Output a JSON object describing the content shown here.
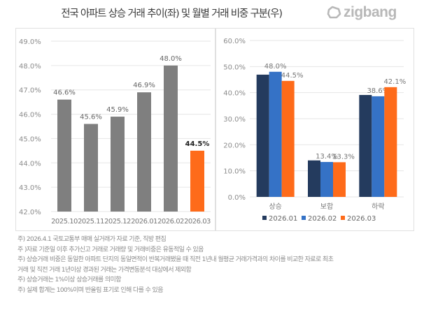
{
  "header": {
    "title": "전국 아파트 상승 거래 추이(좌) 및 월별 거래 비중 구분(우)",
    "logo_text": "zigbang"
  },
  "colors": {
    "gray_bar": "#7f7f7f",
    "highlight_orange": "#fe6b1a",
    "navy": "#243b5e",
    "blue": "#3572c6",
    "orange": "#fe6b1a",
    "grid": "#e6e6e6",
    "tick_text": "#8c8c8c"
  },
  "chart_data": [
    {
      "type": "bar",
      "title": "",
      "xlabel": "",
      "ylabel": "",
      "categories": [
        "2025.10",
        "2025.11",
        "2025.12",
        "2026.01",
        "2026.02",
        "2026.03"
      ],
      "values": [
        46.6,
        45.6,
        45.9,
        46.9,
        48.0,
        44.5
      ],
      "data_labels": [
        "46.6%",
        "45.6%",
        "45.9%",
        "46.9%",
        "48.0%",
        "44.5%"
      ],
      "highlight_index": 5,
      "ylim": [
        42.0,
        49.0
      ],
      "yticks": [
        "42.0%",
        "43.0%",
        "44.0%",
        "45.0%",
        "46.0%",
        "47.0%",
        "48.0%",
        "49.0%"
      ],
      "grid": true,
      "legend": "none"
    },
    {
      "type": "bar",
      "title": "",
      "xlabel": "",
      "ylabel": "",
      "categories": [
        "상승",
        "보합",
        "하락"
      ],
      "series": [
        {
          "name": "2026.01",
          "values": [
            46.9,
            14.0,
            39.1
          ],
          "labels": [
            "",
            "",
            ""
          ]
        },
        {
          "name": "2026.02",
          "values": [
            48.0,
            13.4,
            38.6
          ],
          "labels": [
            "48.0%",
            "13.4%",
            "38.6%"
          ]
        },
        {
          "name": "2026.03",
          "values": [
            44.5,
            13.3,
            42.1
          ],
          "labels": [
            "44.5%",
            "13.3%",
            "42.1%"
          ]
        }
      ],
      "ylim": [
        0,
        60
      ],
      "yticks": [
        "0.0%",
        "10.0%",
        "20.0%",
        "30.0%",
        "40.0%",
        "50.0%",
        "60.0%"
      ],
      "grid": true,
      "legend": "bottom"
    }
  ],
  "notes": [
    "주) 2026.4.1 국토교통부 매매 실거래가 자료 기준, 직방 편집",
    "주 )자료 기준일 이후 추가신고 거래로 거래량 및 거래비중은 유동적일 수 있음",
    "주) 상승거래 비중은 동일한 아파트 단지의 동일면적이 반복거래됐을 때 직전 1년내 월평균 거래가격과의 차이를 비교한 자료로 최초",
    "거래 및 직전 거래 1년이상 경과된 거래는 가격변동분석 대상에서 제외함",
    "주) 상승거래는 1%이상 상승거래를 의미함",
    "주) 실제 합계는 100%이며 반올림 표기로 인해 다를 수 있음"
  ]
}
